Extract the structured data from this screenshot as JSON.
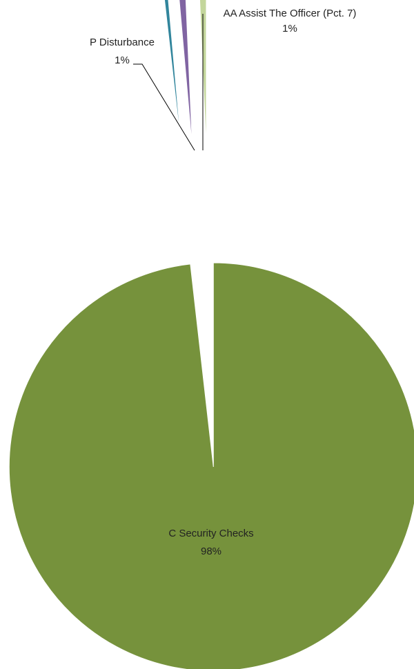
{
  "chart_data": {
    "type": "pie",
    "title": "",
    "slices": [
      {
        "label": "C Security Checks",
        "percent_label": "98%",
        "value": 98.2,
        "color": "#76923c",
        "exploded": true
      },
      {
        "label": "",
        "percent_label": "",
        "value": 0.4,
        "color": "#31859c",
        "exploded": true
      },
      {
        "label": "P Disturbance",
        "percent_label": "1%",
        "value": 0.7,
        "color": "#8064a2",
        "exploded": true
      },
      {
        "label": "AA Assist The Officer (Pct. 7)",
        "percent_label": "1%",
        "value": 0.7,
        "color": "#c3d69b",
        "exploded": true
      }
    ],
    "legend": "none"
  }
}
